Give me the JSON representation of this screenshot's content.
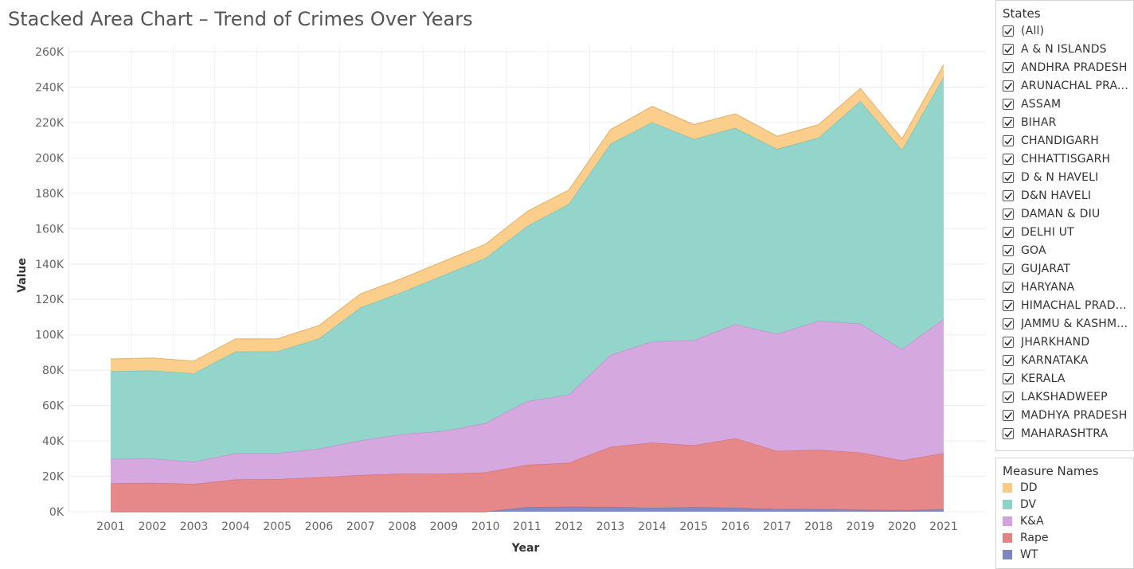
{
  "title": "Stacked Area Chart – Trend of Crimes Over Years",
  "filter": {
    "header": "States",
    "items": [
      {
        "label": "(All)",
        "checked": true
      },
      {
        "label": "A & N ISLANDS",
        "checked": true
      },
      {
        "label": "ANDHRA PRADESH",
        "checked": true
      },
      {
        "label": "ARUNACHAL PRA...",
        "checked": true
      },
      {
        "label": "ASSAM",
        "checked": true
      },
      {
        "label": "BIHAR",
        "checked": true
      },
      {
        "label": "CHANDIGARH",
        "checked": true
      },
      {
        "label": "CHHATTISGARH",
        "checked": true
      },
      {
        "label": "D & N HAVELI",
        "checked": true
      },
      {
        "label": "D&N HAVELI",
        "checked": true
      },
      {
        "label": "DAMAN & DIU",
        "checked": true
      },
      {
        "label": "DELHI UT",
        "checked": true
      },
      {
        "label": "GOA",
        "checked": true
      },
      {
        "label": "GUJARAT",
        "checked": true
      },
      {
        "label": "HARYANA",
        "checked": true
      },
      {
        "label": "HIMACHAL PRAD...",
        "checked": true
      },
      {
        "label": "JAMMU & KASHM...",
        "checked": true
      },
      {
        "label": "JHARKHAND",
        "checked": true
      },
      {
        "label": "KARNATAKA",
        "checked": true
      },
      {
        "label": "KERALA",
        "checked": true
      },
      {
        "label": "LAKSHADWEEP",
        "checked": true
      },
      {
        "label": "MADHYA PRADESH",
        "checked": true
      },
      {
        "label": "MAHARASHTRA",
        "checked": true
      }
    ]
  },
  "legend": {
    "header": "Measure Names",
    "items": [
      {
        "label": "DD",
        "color": "#FBCB85"
      },
      {
        "label": "DV",
        "color": "#8DD3C7"
      },
      {
        "label": "K&A",
        "color": "#D4A3DE"
      },
      {
        "label": "Rape",
        "color": "#E58283"
      },
      {
        "label": "WT",
        "color": "#7B86BF"
      }
    ]
  },
  "chart_data": {
    "type": "area",
    "stacked": true,
    "xlabel": "Year",
    "ylabel": "Value",
    "ylim": [
      -5000,
      265000
    ],
    "y_ticks": [
      0,
      20000,
      40000,
      60000,
      80000,
      100000,
      120000,
      140000,
      160000,
      180000,
      200000,
      220000,
      240000,
      260000
    ],
    "y_tick_labels": [
      "0K",
      "20K",
      "40K",
      "60K",
      "80K",
      "100K",
      "120K",
      "140K",
      "160K",
      "180K",
      "200K",
      "220K",
      "240K",
      "260K"
    ],
    "x": [
      2001,
      2002,
      2003,
      2004,
      2005,
      2006,
      2007,
      2008,
      2009,
      2010,
      2011,
      2012,
      2013,
      2014,
      2015,
      2016,
      2017,
      2018,
      2019,
      2020,
      2021
    ],
    "series": [
      {
        "name": "WT",
        "color": "#7B86BF",
        "values": [
          0,
          0,
          0,
          0,
          0,
          0,
          0,
          0,
          0,
          0,
          2500,
          2800,
          2700,
          2100,
          2500,
          2200,
          1500,
          1400,
          1100,
          800,
          1300
        ]
      },
      {
        "name": "Rape",
        "color": "#E58283",
        "values": [
          16000,
          16300,
          15600,
          18200,
          18400,
          19400,
          20700,
          21500,
          21400,
          22200,
          24000,
          24800,
          33900,
          36900,
          35000,
          39300,
          32800,
          33600,
          32300,
          28200,
          31700
        ]
      },
      {
        "name": "K&A",
        "color": "#D4A3DE",
        "values": [
          13800,
          13700,
          12600,
          14800,
          14600,
          16200,
          19500,
          22300,
          24200,
          27800,
          36000,
          38500,
          51900,
          57200,
          59300,
          64400,
          66200,
          72800,
          72900,
          62800,
          75900
        ]
      },
      {
        "name": "DV",
        "color": "#8DD3C7",
        "values": [
          49600,
          49800,
          50000,
          57500,
          57600,
          62300,
          75200,
          80300,
          88200,
          93400,
          98900,
          107800,
          119400,
          123900,
          113800,
          111000,
          104500,
          103600,
          125800,
          112600,
          136900
        ]
      },
      {
        "name": "DD",
        "color": "#FBCB85",
        "values": [
          6900,
          7100,
          6900,
          7200,
          7100,
          7300,
          7700,
          7800,
          7800,
          7800,
          8300,
          7900,
          8000,
          9000,
          8200,
          8000,
          7200,
          7400,
          7100,
          6400,
          6900
        ]
      }
    ]
  }
}
